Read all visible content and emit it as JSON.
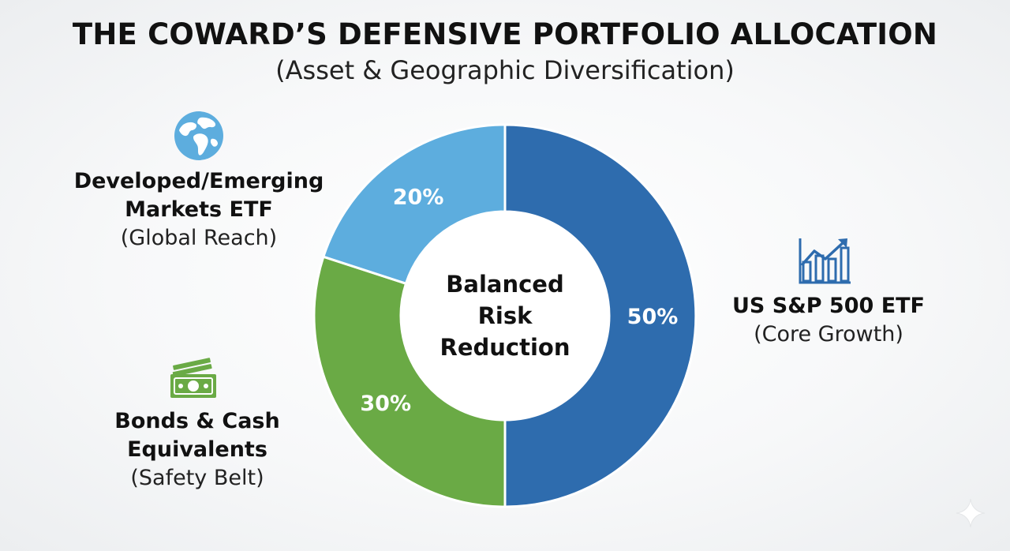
{
  "chart_data": {
    "type": "pie",
    "title": "THE COWARD’S DEFENSIVE PORTFOLIO ALLOCATION",
    "subtitle": "(Asset & Geographic Diversification)",
    "center_label": [
      "Balanced",
      "Risk",
      "Reduction"
    ],
    "slices": [
      {
        "name_lines": [
          "US S&P 500 ETF"
        ],
        "note": "(Core Growth)",
        "value": 50,
        "value_label": "50%",
        "color": "#2E6CAE",
        "icon": "bar-chart-growth-icon"
      },
      {
        "name_lines": [
          "Bonds & Cash",
          "Equivalents"
        ],
        "note": "(Safety Belt)",
        "value": 30,
        "value_label": "30%",
        "color": "#6AAA45",
        "icon": "cash-bills-icon"
      },
      {
        "name_lines": [
          "Developed/Emerging",
          "Markets ETF"
        ],
        "note": "(Global Reach)",
        "value": 20,
        "value_label": "20%",
        "color": "#5DADDE",
        "icon": "globe-icon"
      }
    ],
    "colors": {
      "icon_blue": "#2E6CAE",
      "icon_light_blue": "#5DADDE",
      "icon_green": "#6AAA45"
    }
  }
}
